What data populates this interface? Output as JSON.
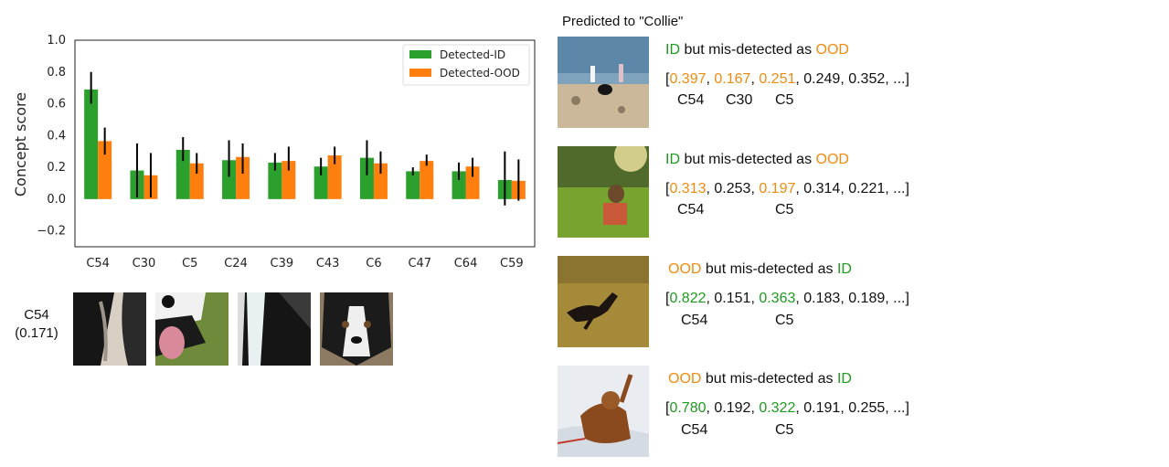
{
  "chart_data": {
    "type": "bar",
    "categories": [
      "C54",
      "C30",
      "C5",
      "C24",
      "C39",
      "C43",
      "C6",
      "C47",
      "C64",
      "C59"
    ],
    "series": [
      {
        "name": "Detected-ID",
        "color": "#2ca02c",
        "values": [
          0.69,
          0.18,
          0.31,
          0.245,
          0.23,
          0.205,
          0.26,
          0.175,
          0.175,
          0.12
        ],
        "err_low": [
          0.6,
          0.01,
          0.24,
          0.14,
          0.18,
          0.15,
          0.15,
          0.15,
          0.12,
          -0.04
        ],
        "err_high": [
          0.8,
          0.35,
          0.39,
          0.37,
          0.29,
          0.26,
          0.37,
          0.2,
          0.23,
          0.3
        ]
      },
      {
        "name": "Detected-OOD",
        "color": "#ff7f0e",
        "values": [
          0.365,
          0.15,
          0.225,
          0.265,
          0.24,
          0.275,
          0.225,
          0.24,
          0.205,
          0.115
        ],
        "err_low": [
          0.28,
          0.01,
          0.16,
          0.16,
          0.18,
          0.22,
          0.16,
          0.21,
          0.14,
          -0.01
        ],
        "err_high": [
          0.45,
          0.29,
          0.29,
          0.35,
          0.33,
          0.33,
          0.3,
          0.28,
          0.26,
          0.25
        ]
      }
    ],
    "ylabel": "Concept score",
    "xlabel": "",
    "ylim": [
      -0.3,
      1.0
    ],
    "yticks": [
      -0.2,
      0.0,
      0.2,
      0.4,
      0.6,
      0.8,
      1.0
    ],
    "ytick_labels": [
      "−0.2",
      "0.0",
      "0.2",
      "0.4",
      "0.6",
      "0.8",
      "1.0"
    ],
    "legend_position": "top-right",
    "grid": false
  },
  "concept_example": {
    "label": "C54",
    "score": "(0.171)",
    "patches": [
      "border-collie-fur-patch",
      "border-collie-mouth-patch",
      "border-collie-neck-patch",
      "border-collie-face-patch"
    ]
  },
  "right_panel": {
    "title": "Predicted to \"Collie\"",
    "colors": {
      "id": "#1e9a1e",
      "ood": "#ef8b10"
    },
    "examples": [
      {
        "status_a": "ID",
        "status_mid": " but mis-detected as ",
        "status_b": "OOD",
        "a_class": "green",
        "b_class": "orange",
        "scores": [
          "0.397",
          "0.167",
          "0.251",
          "0.249",
          "0.352"
        ],
        "highlight": [
          0,
          1,
          2
        ],
        "hl_class": "orange",
        "concepts": [
          "C54",
          "C30",
          "C5"
        ],
        "image": "dog-on-beach-photo"
      },
      {
        "status_a": "ID",
        "status_mid": " but mis-detected as ",
        "status_b": "OOD",
        "a_class": "green",
        "b_class": "orange",
        "scores": [
          "0.313",
          "0.253",
          "0.197",
          "0.314",
          "0.221"
        ],
        "highlight": [
          0,
          2
        ],
        "hl_class": "orange",
        "concepts": [
          "C54",
          "",
          "C5"
        ],
        "image": "dog-in-grass-photo"
      },
      {
        "status_a": "OOD",
        "status_mid": " but mis-detected as ",
        "status_b": "ID",
        "a_class": "orange",
        "b_class": "green",
        "scores": [
          "0.822",
          "0.151",
          "0.363",
          "0.183",
          "0.189"
        ],
        "highlight": [
          0,
          2
        ],
        "hl_class": "green",
        "concepts": [
          "C54",
          "",
          "C5"
        ],
        "image": "dog-leaping-field-photo"
      },
      {
        "status_a": "OOD",
        "status_mid": " but mis-detected as ",
        "status_b": "ID",
        "a_class": "orange",
        "b_class": "green",
        "scores": [
          "0.780",
          "0.192",
          "0.322",
          "0.191",
          "0.255"
        ],
        "highlight": [
          0,
          2
        ],
        "hl_class": "green",
        "concepts": [
          "C54",
          "",
          "C5"
        ],
        "image": "dog-in-snow-photo"
      }
    ]
  }
}
